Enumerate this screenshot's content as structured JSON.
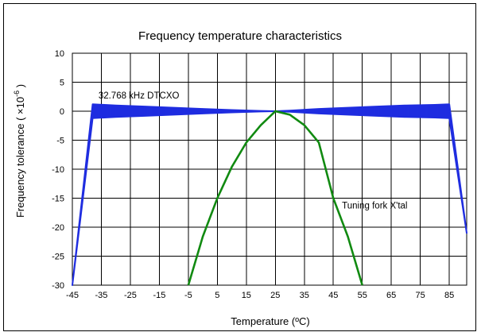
{
  "chart_data": {
    "type": "line",
    "title": "Frequency temperature characteristics",
    "xlabel": "Temperature (ºC)",
    "ylabel_main": "Frequency tolerance ( ×10",
    "ylabel_exp": "-6",
    "ylabel_close": " )",
    "xlim": [
      -45,
      91
    ],
    "ylim": [
      -30,
      10
    ],
    "x_ticks": [
      -45,
      -35,
      -25,
      -15,
      -5,
      5,
      15,
      25,
      35,
      45,
      55,
      65,
      75,
      85
    ],
    "x_tick_labels": [
      "-45",
      "-35",
      "-25",
      "-15",
      "-5",
      "5",
      "15",
      "25",
      "35",
      "45",
      "55",
      "65",
      "75",
      "85"
    ],
    "y_ticks": [
      10,
      5,
      0,
      -5,
      -10,
      -15,
      -20,
      -25,
      -30
    ],
    "y_tick_labels": [
      "10",
      "5",
      "0",
      "-5",
      "-10",
      "-15",
      "-20",
      "-25",
      "-30"
    ],
    "grid": true,
    "series": [
      {
        "name": "32.768 kHz DTCXO",
        "color": "#1f2de0",
        "upper": [
          [
            -45,
            -30
          ],
          [
            -38,
            1.2
          ],
          [
            -30,
            1.0
          ],
          [
            -20,
            0.8
          ],
          [
            -10,
            0.6
          ],
          [
            0,
            0.4
          ],
          [
            10,
            0.2
          ],
          [
            20,
            0.05
          ],
          [
            25,
            0
          ],
          [
            30,
            0.1
          ],
          [
            40,
            0.4
          ],
          [
            50,
            0.6
          ],
          [
            60,
            0.8
          ],
          [
            70,
            1.0
          ],
          [
            80,
            1.1
          ],
          [
            85,
            1.2
          ],
          [
            91,
            -21
          ]
        ],
        "lower": [
          [
            -45,
            -30
          ],
          [
            -38,
            -1.2
          ],
          [
            -30,
            -1.0
          ],
          [
            -20,
            -0.8
          ],
          [
            -10,
            -0.6
          ],
          [
            0,
            -0.4
          ],
          [
            10,
            -0.2
          ],
          [
            20,
            -0.05
          ],
          [
            25,
            0
          ],
          [
            30,
            -0.1
          ],
          [
            40,
            -0.4
          ],
          [
            50,
            -0.6
          ],
          [
            60,
            -0.8
          ],
          [
            70,
            -1.0
          ],
          [
            80,
            -1.1
          ],
          [
            85,
            -1.2
          ],
          [
            91,
            -21
          ]
        ]
      },
      {
        "name": "Tuning fork X'tal",
        "color": "#118a11",
        "x": [
          -5,
          0,
          5,
          10,
          15,
          20,
          25,
          30,
          35,
          40,
          45,
          50,
          55
        ],
        "y": [
          -30,
          -21.6,
          -15,
          -9.6,
          -5.4,
          -2.4,
          0,
          -0.6,
          -2.4,
          -5.4,
          -15,
          -21.6,
          -30
        ]
      }
    ],
    "annotations": [
      {
        "text": "32.768 kHz DTCXO",
        "x": -36,
        "y": 2.2
      },
      {
        "text": "Tuning fork X'tal",
        "x": 48,
        "y": -16.8
      }
    ]
  }
}
